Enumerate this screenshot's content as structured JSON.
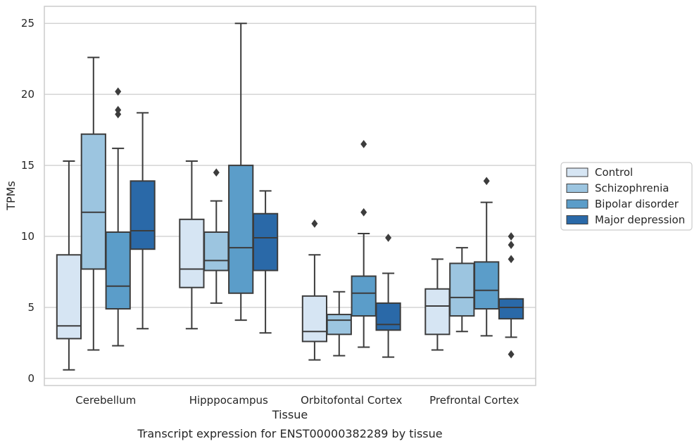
{
  "chart_data": {
    "type": "boxplot",
    "xlabel": "Tissue",
    "ylabel": "TPMs",
    "caption": "Transcript expression for ENST00000382289 by tissue",
    "ylim": [
      -0.5,
      26.2
    ],
    "yticks": [
      0,
      5,
      10,
      15,
      20,
      25
    ],
    "grid": "horizontal",
    "legend_position": "right",
    "categories": [
      "Cerebellum",
      "Hipppocampus",
      "Orbitofontal Cortex",
      "Prefrontal Cortex"
    ],
    "series": [
      {
        "name": "Control",
        "color": "#d6e5f3",
        "boxes": [
          {
            "whisker_low": 0.6,
            "q1": 2.8,
            "median": 3.7,
            "q3": 8.7,
            "whisker_high": 15.3,
            "outliers": []
          },
          {
            "whisker_low": 3.5,
            "q1": 6.4,
            "median": 7.7,
            "q3": 11.2,
            "whisker_high": 15.3,
            "outliers": []
          },
          {
            "whisker_low": 1.3,
            "q1": 2.6,
            "median": 3.3,
            "q3": 5.8,
            "whisker_high": 8.7,
            "outliers": [
              10.9
            ]
          },
          {
            "whisker_low": 2.0,
            "q1": 3.1,
            "median": 5.1,
            "q3": 6.3,
            "whisker_high": 8.4,
            "outliers": []
          }
        ]
      },
      {
        "name": "Schizophrenia",
        "color": "#9cc5e0",
        "boxes": [
          {
            "whisker_low": 2.0,
            "q1": 7.7,
            "median": 11.7,
            "q3": 17.2,
            "whisker_high": 22.6,
            "outliers": []
          },
          {
            "whisker_low": 5.3,
            "q1": 7.6,
            "median": 8.3,
            "q3": 10.3,
            "whisker_high": 12.5,
            "outliers": [
              14.5
            ]
          },
          {
            "whisker_low": 1.6,
            "q1": 3.1,
            "median": 4.1,
            "q3": 4.5,
            "whisker_high": 6.1,
            "outliers": []
          },
          {
            "whisker_low": 3.3,
            "q1": 4.4,
            "median": 5.7,
            "q3": 8.1,
            "whisker_high": 9.2,
            "outliers": []
          }
        ]
      },
      {
        "name": "Bipolar disorder",
        "color": "#5b9dc9",
        "boxes": [
          {
            "whisker_low": 2.3,
            "q1": 4.9,
            "median": 6.5,
            "q3": 10.3,
            "whisker_high": 16.2,
            "outliers": [
              18.6,
              18.9,
              20.2
            ]
          },
          {
            "whisker_low": 4.1,
            "q1": 6.0,
            "median": 9.2,
            "q3": 15.0,
            "whisker_high": 25.0,
            "outliers": []
          },
          {
            "whisker_low": 2.2,
            "q1": 4.4,
            "median": 6.0,
            "q3": 7.2,
            "whisker_high": 10.2,
            "outliers": [
              11.7,
              16.5
            ]
          },
          {
            "whisker_low": 3.0,
            "q1": 4.9,
            "median": 6.2,
            "q3": 8.2,
            "whisker_high": 12.4,
            "outliers": [
              13.9
            ]
          }
        ]
      },
      {
        "name": "Major depression",
        "color": "#2a69a8",
        "boxes": [
          {
            "whisker_low": 3.5,
            "q1": 9.1,
            "median": 10.4,
            "q3": 13.9,
            "whisker_high": 18.7,
            "outliers": []
          },
          {
            "whisker_low": 3.2,
            "q1": 7.6,
            "median": 9.9,
            "q3": 11.6,
            "whisker_high": 13.2,
            "outliers": []
          },
          {
            "whisker_low": 1.5,
            "q1": 3.4,
            "median": 3.8,
            "q3": 5.3,
            "whisker_high": 7.4,
            "outliers": [
              9.9
            ]
          },
          {
            "whisker_low": 2.9,
            "q1": 4.2,
            "median": 5.0,
            "q3": 5.6,
            "whisker_high": 5.6,
            "outliers": [
              1.7,
              8.4,
              9.4,
              10.0
            ]
          }
        ]
      }
    ]
  },
  "colors": {
    "grid": "#cccccc",
    "axes_border": "#cccccc",
    "box_edge": "#3c3c3c",
    "text": "#262626"
  }
}
